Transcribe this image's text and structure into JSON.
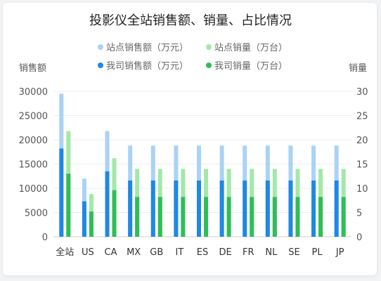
{
  "chart_data": {
    "type": "bar",
    "title": "投影仪全站销售额、销量、占比情况",
    "categories": [
      "全站",
      "US",
      "CA",
      "MX",
      "GB",
      "IT",
      "ES",
      "DE",
      "FR",
      "NL",
      "SE",
      "PL",
      "JP"
    ],
    "y_left_label": "销售额",
    "y_right_label": "销量",
    "y_left_lim": [
      0,
      30000
    ],
    "y_left_ticks": [
      "0",
      "5000",
      "10000",
      "15000",
      "20000",
      "25000",
      "30000"
    ],
    "y_right_lim": [
      0,
      30
    ],
    "y_right_ticks": [
      "0",
      "5",
      "10",
      "15",
      "20",
      "25",
      "30"
    ],
    "legend_position": "top-center",
    "grid": true,
    "series": [
      {
        "name": "站点销售额（万元）",
        "axis": "left",
        "color": "#a9d2f7",
        "values": [
          29500,
          12000,
          21800,
          18800,
          18800,
          18800,
          18800,
          18800,
          18800,
          18800,
          18800,
          18800,
          18800
        ]
      },
      {
        "name": "我司销售额（万元）",
        "axis": "left",
        "color": "#1e88e5",
        "values": [
          18200,
          7300,
          13500,
          11600,
          11600,
          11600,
          11600,
          11600,
          11600,
          11600,
          11600,
          11600,
          11600
        ]
      },
      {
        "name": "站点销量（万台）",
        "axis": "right",
        "color": "#a3e8a8",
        "values": [
          21.8,
          8.8,
          16.2,
          14,
          14,
          14,
          14,
          14,
          14,
          14,
          14,
          14,
          14
        ]
      },
      {
        "name": "我司销量（万台）",
        "axis": "right",
        "color": "#2fbe55",
        "values": [
          13,
          5.2,
          9.6,
          8.2,
          8.2,
          8.2,
          8.2,
          8.2,
          8.2,
          8.2,
          8.2,
          8.2,
          8.2
        ]
      }
    ]
  }
}
